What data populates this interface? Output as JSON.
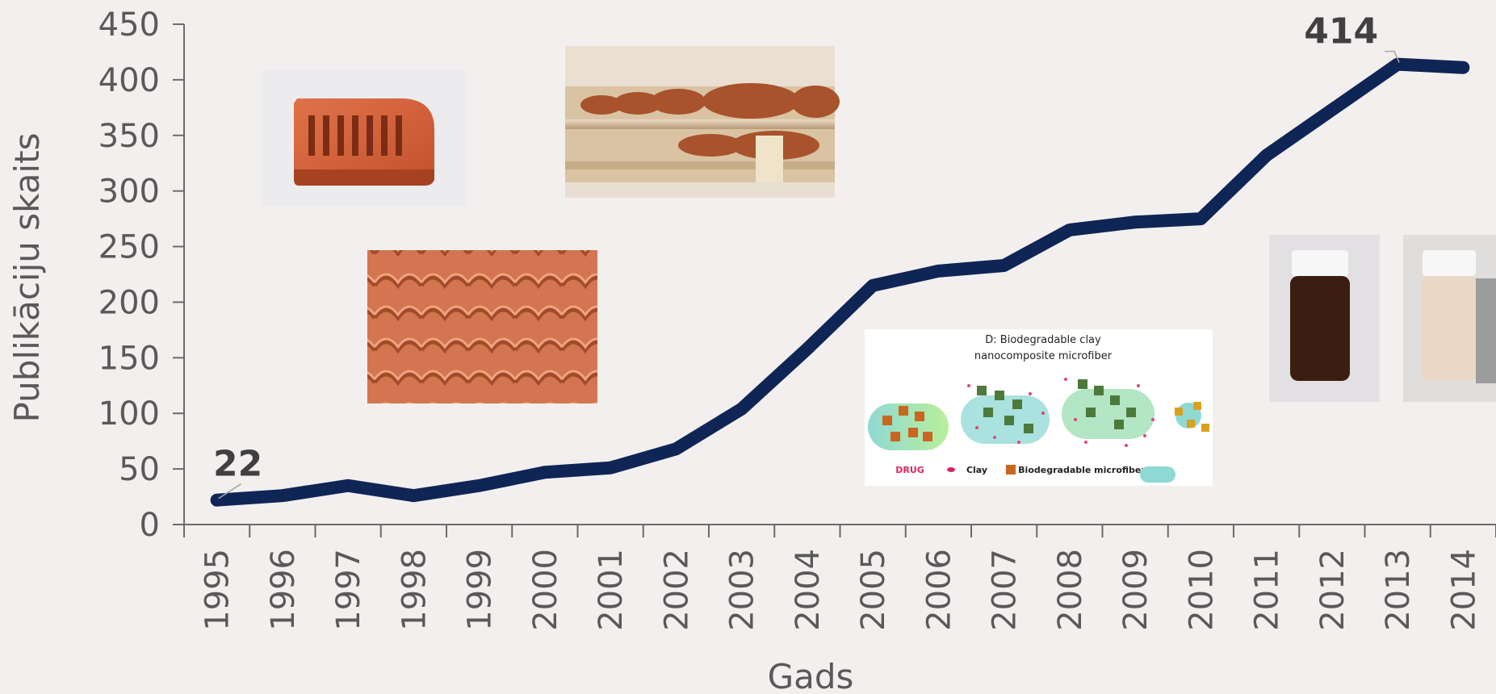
{
  "chart_data": {
    "type": "line",
    "title": "",
    "xlabel": "Gads",
    "ylabel": "Publikāciju skaits",
    "x": [
      "1995",
      "1996",
      "1997",
      "1998",
      "1999",
      "2000",
      "2001",
      "2002",
      "2003",
      "2004",
      "2005",
      "2006",
      "2007",
      "2008",
      "2009",
      "2010",
      "2011",
      "2012",
      "2013",
      "2014"
    ],
    "series": [
      {
        "values": [
          22,
          26,
          35,
          26,
          35,
          47,
          51,
          68,
          104,
          158,
          215,
          228,
          233,
          265,
          272,
          275,
          332,
          373,
          414,
          411
        ]
      }
    ],
    "ylim": [
      0,
      450
    ],
    "yticks": [
      "0",
      "50",
      "100",
      "150",
      "200",
      "250",
      "300",
      "350",
      "400",
      "450"
    ],
    "line_color": "#0f2556",
    "grid": false,
    "legend": "none",
    "data_labels": [
      {
        "index": 0,
        "text": "22"
      },
      {
        "index": 18,
        "text": "414"
      }
    ]
  },
  "figure_caption": {
    "title_line1": "D: Biodegradable clay",
    "title_line2": "nanocomposite microfiber",
    "legend_drug": "DRUG",
    "legend_clay": "Clay",
    "legend_fiber": "Biodegradable microfiber"
  }
}
